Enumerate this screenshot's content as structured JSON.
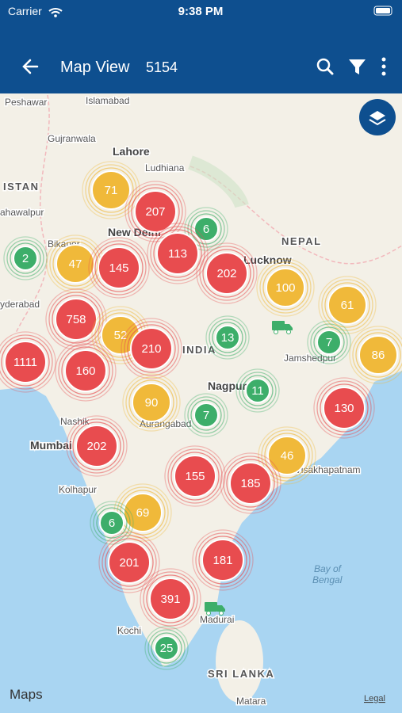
{
  "status_bar": {
    "carrier": "Carrier",
    "time": "9:38 PM"
  },
  "header": {
    "title": "Map View",
    "count": "5154"
  },
  "map": {
    "places": [
      "Peshawar",
      "Islamabad",
      "Gujranwala",
      "Lahore",
      "Ludhiana",
      "ISTAN",
      "ahawalpur",
      "Bikaner",
      "New Delhi",
      "NEPAL",
      "Lucknow",
      "yderabad",
      "INDIA",
      "Jamshedpur",
      "Nagpur",
      "Nashik",
      "Aurangabad",
      "Mumbai",
      "Visakhapatnam",
      "Kolhapur",
      "Kochi",
      "Madurai",
      "SRI LANKA",
      "Matara"
    ],
    "sea": [
      "Bay of",
      "Bengal"
    ],
    "clusters": [
      {
        "count": 71,
        "color": "#f0b93a"
      },
      {
        "count": 207,
        "color": "#e84c4f"
      },
      {
        "count": 6,
        "color": "#3dae6a"
      },
      {
        "count": 2,
        "color": "#3dae6a"
      },
      {
        "count": 47,
        "color": "#f0b93a"
      },
      {
        "count": 145,
        "color": "#e84c4f"
      },
      {
        "count": 113,
        "color": "#e84c4f"
      },
      {
        "count": 202,
        "color": "#e84c4f"
      },
      {
        "count": 100,
        "color": "#f0b93a"
      },
      {
        "count": 61,
        "color": "#f0b93a"
      },
      {
        "count": 758,
        "color": "#e84c4f"
      },
      {
        "count": 52,
        "color": "#f0b93a"
      },
      {
        "count": 210,
        "color": "#e84c4f"
      },
      {
        "count": 13,
        "color": "#3dae6a"
      },
      {
        "count": 7,
        "color": "#3dae6a"
      },
      {
        "count": 86,
        "color": "#f0b93a"
      },
      {
        "count": 1111,
        "color": "#e84c4f"
      },
      {
        "count": 160,
        "color": "#e84c4f"
      },
      {
        "count": 11,
        "color": "#3dae6a"
      },
      {
        "count": 130,
        "color": "#e84c4f"
      },
      {
        "count": 90,
        "color": "#f0b93a"
      },
      {
        "count": 7,
        "color": "#3dae6a"
      },
      {
        "count": 202,
        "color": "#e84c4f"
      },
      {
        "count": 46,
        "color": "#f0b93a"
      },
      {
        "count": 155,
        "color": "#e84c4f"
      },
      {
        "count": 185,
        "color": "#e84c4f"
      },
      {
        "count": 69,
        "color": "#f0b93a"
      },
      {
        "count": 6,
        "color": "#3dae6a"
      },
      {
        "count": 201,
        "color": "#e84c4f"
      },
      {
        "count": 181,
        "color": "#e84c4f"
      },
      {
        "count": 391,
        "color": "#e84c4f"
      },
      {
        "count": 25,
        "color": "#3dae6a"
      }
    ],
    "attribution": "Maps",
    "legal": "Legal"
  }
}
